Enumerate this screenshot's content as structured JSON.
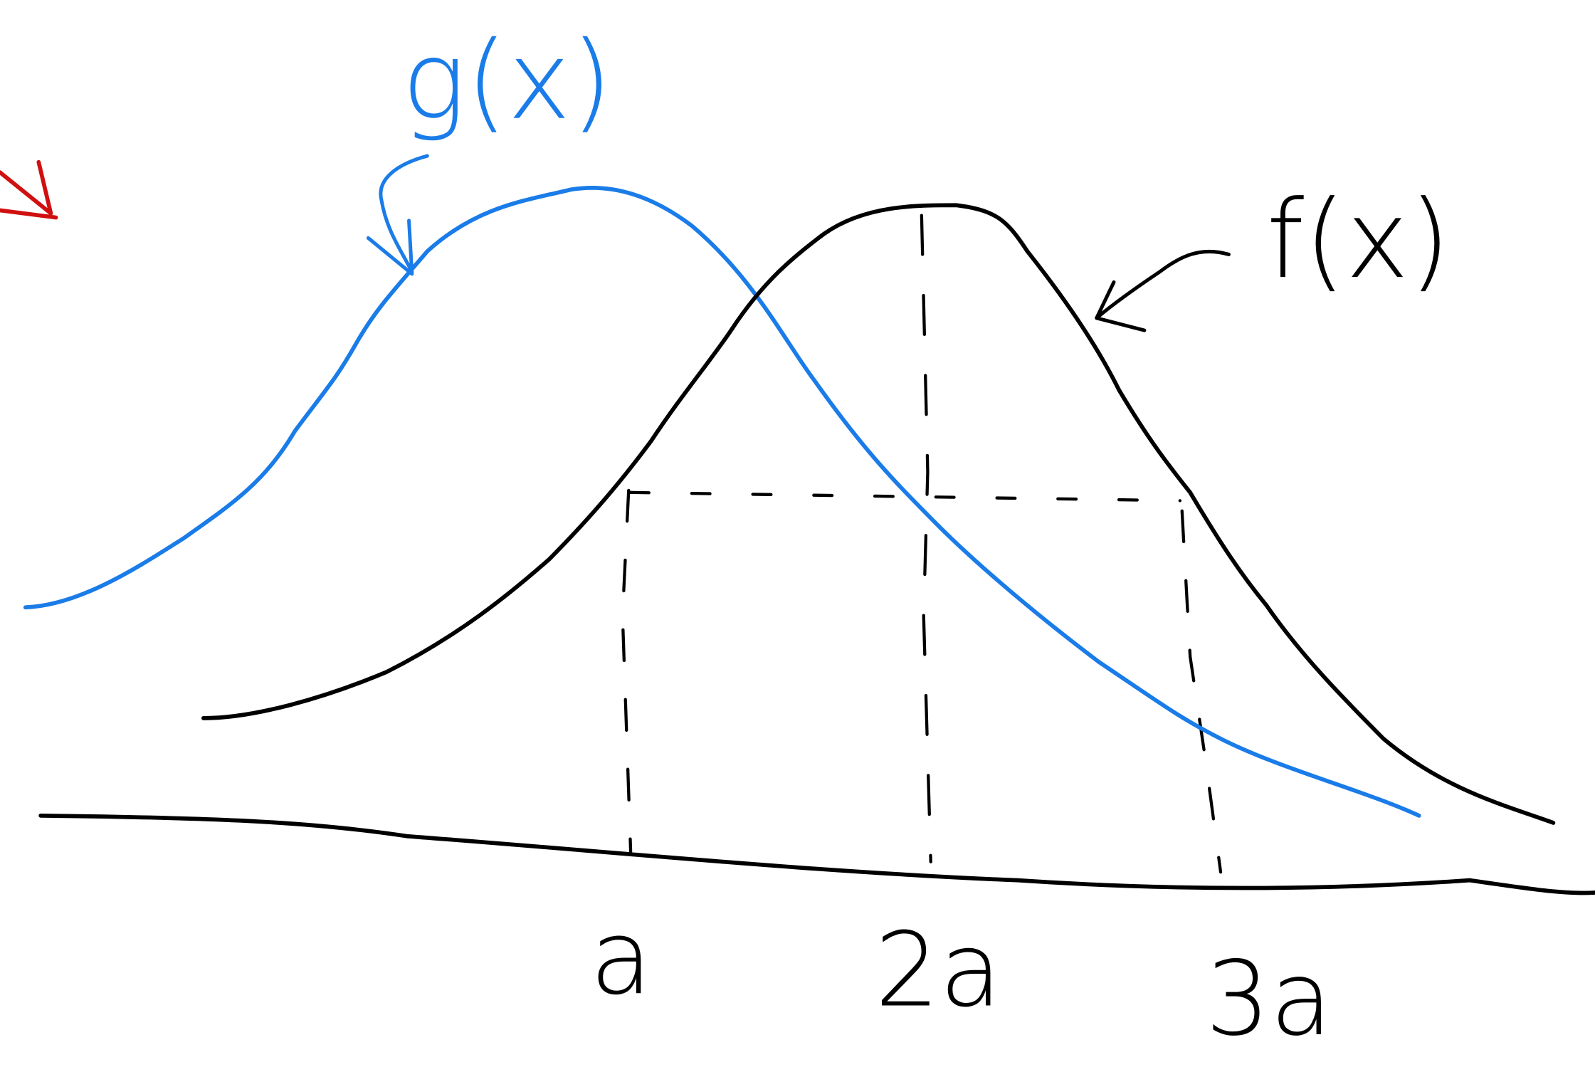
{
  "curve_labels": {
    "g": "g(x)",
    "f": "f(x)"
  },
  "axis_labels": [
    "a",
    "2a",
    "3a"
  ]
}
